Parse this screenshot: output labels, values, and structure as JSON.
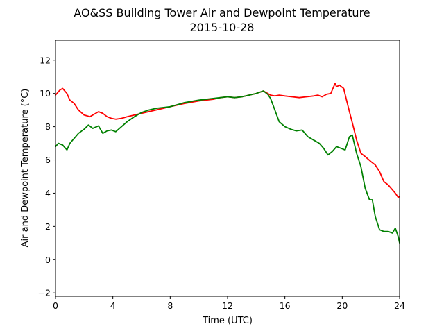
{
  "chart_data": {
    "type": "line",
    "title": "AO&SS Building Tower Air and Dewpoint Temperature",
    "subtitle": "2015-10-28",
    "xlabel": "Time (UTC)",
    "ylabel": "Air and Dewpoint Temperature (°C)",
    "xlim": [
      0,
      24
    ],
    "ylim": [
      -2.2,
      13.2
    ],
    "xticks": [
      0,
      4,
      8,
      12,
      16,
      20,
      24
    ],
    "yticks": [
      -2,
      0,
      2,
      4,
      6,
      8,
      10,
      12
    ],
    "grid": false,
    "legend": "none",
    "series": [
      {
        "color": "#ff0000",
        "x": [
          0,
          0.3,
          0.5,
          0.8,
          1.0,
          1.3,
          1.6,
          2.0,
          2.4,
          2.8,
          3.0,
          3.3,
          3.6,
          3.9,
          4.2,
          4.6,
          5.0,
          5.5,
          6.0,
          6.5,
          7.0,
          7.5,
          8.0,
          9.0,
          10.0,
          11.0,
          11.5,
          12.0,
          12.5,
          13.0,
          13.5,
          14.0,
          14.5,
          14.8,
          15.0,
          15.3,
          15.6,
          16.0,
          16.5,
          17.0,
          17.5,
          18.0,
          18.3,
          18.6,
          18.9,
          19.2,
          19.5,
          19.6,
          19.8,
          20.1,
          20.3,
          20.5,
          20.8,
          21.0,
          21.3,
          21.6,
          22.0,
          22.3,
          22.6,
          22.9,
          23.2,
          23.5,
          23.7,
          23.9,
          24.0
        ],
        "values": [
          9.9,
          10.2,
          10.3,
          10.0,
          9.6,
          9.4,
          9.0,
          8.7,
          8.6,
          8.8,
          8.9,
          8.8,
          8.6,
          8.5,
          8.45,
          8.5,
          8.6,
          8.7,
          8.8,
          8.9,
          9.0,
          9.1,
          9.2,
          9.4,
          9.55,
          9.65,
          9.75,
          9.8,
          9.75,
          9.8,
          9.9,
          10.0,
          10.15,
          10.0,
          9.9,
          9.85,
          9.9,
          9.85,
          9.8,
          9.75,
          9.8,
          9.85,
          9.9,
          9.8,
          9.95,
          10.0,
          10.6,
          10.4,
          10.5,
          10.3,
          9.6,
          8.9,
          7.9,
          7.2,
          6.4,
          6.2,
          5.9,
          5.7,
          5.3,
          4.7,
          4.5,
          4.2,
          4.0,
          3.75,
          3.8
        ]
      },
      {
        "color": "#008000",
        "x": [
          0,
          0.2,
          0.5,
          0.8,
          1.0,
          1.3,
          1.6,
          2.0,
          2.3,
          2.6,
          3.0,
          3.3,
          3.6,
          3.9,
          4.2,
          4.6,
          5.0,
          5.5,
          6.0,
          6.5,
          7.0,
          7.5,
          8.0,
          9.0,
          10.0,
          11.0,
          11.5,
          12.0,
          12.5,
          13.0,
          13.5,
          14.0,
          14.5,
          14.8,
          15.0,
          15.3,
          15.6,
          16.0,
          16.4,
          16.8,
          17.2,
          17.6,
          18.0,
          18.4,
          18.7,
          19.0,
          19.3,
          19.6,
          19.9,
          20.2,
          20.5,
          20.7,
          21.0,
          21.3,
          21.6,
          21.9,
          22.1,
          22.3,
          22.6,
          22.9,
          23.2,
          23.5,
          23.7,
          23.9,
          24.0
        ],
        "values": [
          6.8,
          7.0,
          6.9,
          6.6,
          7.0,
          7.3,
          7.6,
          7.85,
          8.1,
          7.9,
          8.05,
          7.6,
          7.75,
          7.8,
          7.7,
          8.0,
          8.3,
          8.6,
          8.85,
          9.0,
          9.1,
          9.15,
          9.2,
          9.45,
          9.6,
          9.7,
          9.75,
          9.8,
          9.75,
          9.8,
          9.9,
          10.0,
          10.15,
          9.95,
          9.7,
          9.0,
          8.3,
          8.0,
          7.85,
          7.75,
          7.8,
          7.4,
          7.2,
          7.0,
          6.7,
          6.3,
          6.5,
          6.8,
          6.7,
          6.6,
          7.4,
          7.5,
          6.4,
          5.6,
          4.3,
          3.6,
          3.6,
          2.6,
          1.8,
          1.7,
          1.7,
          1.6,
          1.9,
          1.4,
          1.0
        ]
      }
    ]
  }
}
